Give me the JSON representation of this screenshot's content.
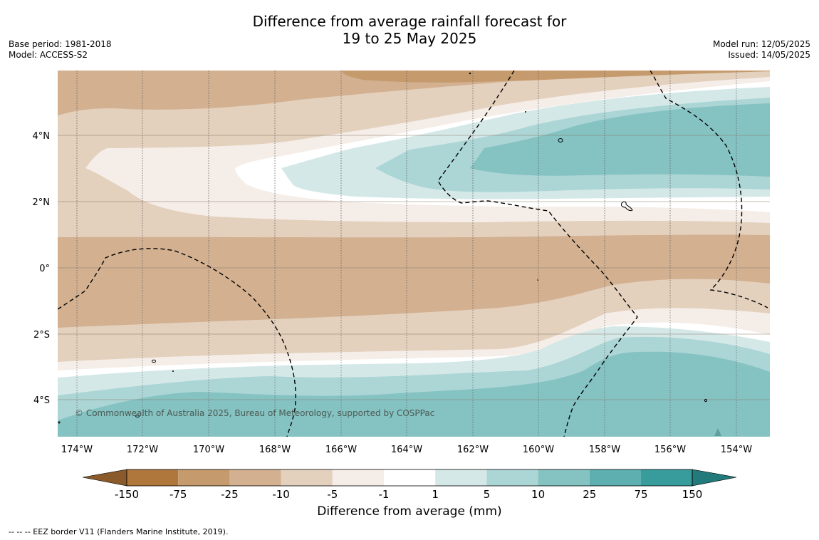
{
  "title": {
    "line1": "Difference from average rainfall forecast for",
    "line2": "19 to 25 May 2025"
  },
  "meta_left": {
    "base_period": "Base period: 1981-2018",
    "model": "Model: ACCESS-S2"
  },
  "meta_right": {
    "model_run": "Model run: 12/05/2025",
    "issued": "Issued: 14/05/2025"
  },
  "map": {
    "latitude_labels": [
      "4°N",
      "2°N",
      "0°",
      "2°S",
      "4°S"
    ],
    "longitude_labels": [
      "174°W",
      "172°W",
      "170°W",
      "168°W",
      "166°W",
      "164°W",
      "162°W",
      "160°W",
      "158°W",
      "156°W",
      "154°W"
    ],
    "copyright": "© Commonwealth of Australia 2025, Bureau of Meteorology, supported by COSPPac"
  },
  "colorbar": {
    "title": "Difference from average (mm)",
    "tick_labels": [
      "-150",
      "-75",
      "-25",
      "-10",
      "-5",
      "-1",
      "1",
      "5",
      "10",
      "25",
      "75",
      "150"
    ],
    "colors": {
      "below_min": "#8a5a2b",
      "bins": [
        "#b0773d",
        "#c59a6c",
        "#d2b090",
        "#e3d0bd",
        "#f5ede7",
        "#ffffff",
        "#d5e8e8",
        "#acd5d5",
        "#85c2c2",
        "#5eafaf",
        "#389c9c"
      ],
      "above_max": "#237a7a"
    }
  },
  "footnote": "--  --  -- EEZ border V11 (Flanders Marine Institute, 2019)."
}
